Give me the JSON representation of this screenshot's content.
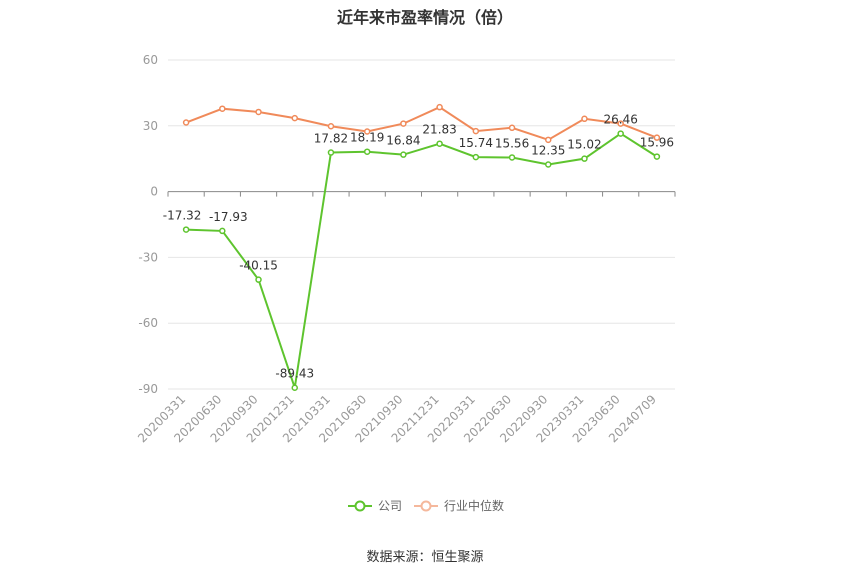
{
  "chart_data": {
    "type": "line",
    "title": "近年来市盈率情况（倍）",
    "categories": [
      "20200331",
      "20200630",
      "20200930",
      "20201231",
      "20210331",
      "20210630",
      "20210930",
      "20211231",
      "20220331",
      "20220630",
      "20220930",
      "20230331",
      "20230630",
      "20240709"
    ],
    "series": [
      {
        "name": "公司",
        "color": "#5ec42e",
        "values": [
          -17.32,
          -17.93,
          -40.15,
          -89.43,
          17.82,
          18.19,
          16.84,
          21.83,
          15.74,
          15.56,
          12.35,
          15.02,
          26.46,
          15.96
        ],
        "labels": [
          "-17.32",
          "-17.93",
          "-40.15",
          "-89.43",
          "17.82",
          "18.19",
          "16.84",
          "21.83",
          "15.74",
          "15.56",
          "12.35",
          "15.02",
          "26.46",
          "15.96"
        ]
      },
      {
        "name": "行业中位数",
        "color": "#f08a5a",
        "values": [
          31.5,
          37.8,
          36.3,
          33.5,
          29.8,
          27.4,
          31.0,
          38.5,
          27.6,
          29.1,
          23.6,
          33.2,
          31.0,
          24.6
        ]
      }
    ],
    "yticks": [
      60,
      30,
      0,
      -30,
      -60,
      -90
    ],
    "ylim": [
      -90,
      60
    ],
    "grid": true,
    "legend_position": "bottom"
  },
  "source": "数据来源：恒生聚源"
}
